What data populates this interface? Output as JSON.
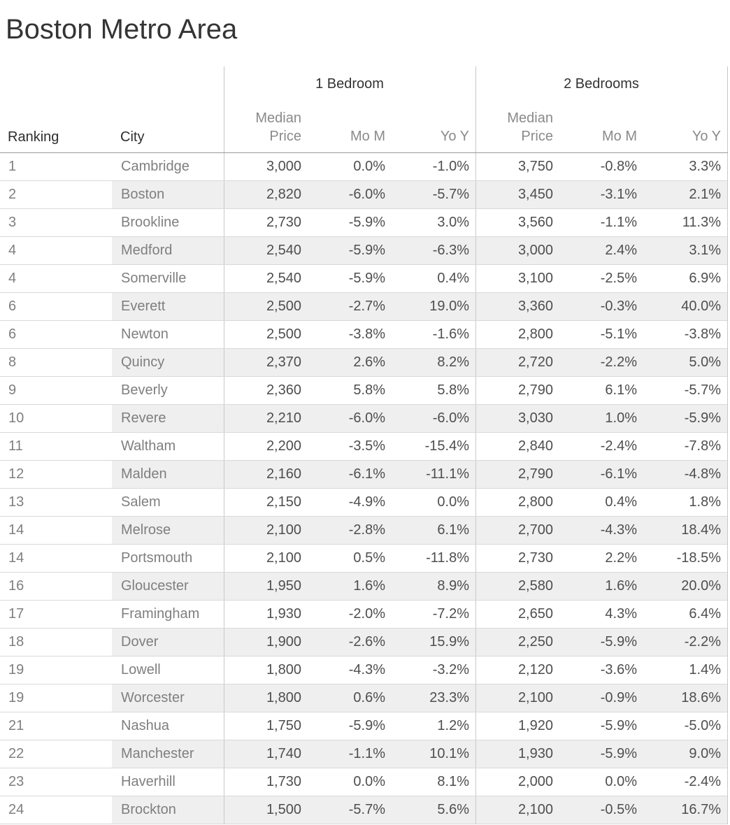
{
  "title": "Boston Metro Area",
  "header": {
    "ranking": "Ranking",
    "city": "City",
    "group_1br": "1 Bedroom",
    "group_2br": "2 Bedrooms",
    "median_price": "Median\nPrice",
    "mom": "Mo M",
    "yoy": "Yo Y"
  },
  "colors": {
    "title_text": "#343434",
    "header_text": "#2e2e2e",
    "subheader_text": "#8a8a8a",
    "dimension_text": "#7f7f7f",
    "value_text": "#4e4e4e",
    "row_stripe": "#efefef",
    "row_line": "#d9d9d9",
    "header_line": "#999999",
    "pane_line": "#c9c9c9",
    "background": "#ffffff"
  },
  "chart_data": {
    "type": "table",
    "title": "Boston Metro Area",
    "column_groups": [
      "",
      "",
      "1 Bedroom",
      "1 Bedroom",
      "1 Bedroom",
      "2 Bedrooms",
      "2 Bedrooms",
      "2 Bedrooms"
    ],
    "columns": [
      "Ranking",
      "City",
      "Median Price",
      "Mo M",
      "Yo Y",
      "Median Price",
      "Mo M",
      "Yo Y"
    ],
    "rows": [
      [
        "1",
        "Cambridge",
        "3,000",
        "0.0%",
        "-1.0%",
        "3,750",
        "-0.8%",
        "3.3%"
      ],
      [
        "2",
        "Boston",
        "2,820",
        "-6.0%",
        "-5.7%",
        "3,450",
        "-3.1%",
        "2.1%"
      ],
      [
        "3",
        "Brookline",
        "2,730",
        "-5.9%",
        "3.0%",
        "3,560",
        "-1.1%",
        "11.3%"
      ],
      [
        "4",
        "Medford",
        "2,540",
        "-5.9%",
        "-6.3%",
        "3,000",
        "2.4%",
        "3.1%"
      ],
      [
        "4",
        "Somerville",
        "2,540",
        "-5.9%",
        "0.4%",
        "3,100",
        "-2.5%",
        "6.9%"
      ],
      [
        "6",
        "Everett",
        "2,500",
        "-2.7%",
        "19.0%",
        "3,360",
        "-0.3%",
        "40.0%"
      ],
      [
        "6",
        "Newton",
        "2,500",
        "-3.8%",
        "-1.6%",
        "2,800",
        "-5.1%",
        "-3.8%"
      ],
      [
        "8",
        "Quincy",
        "2,370",
        "2.6%",
        "8.2%",
        "2,720",
        "-2.2%",
        "5.0%"
      ],
      [
        "9",
        "Beverly",
        "2,360",
        "5.8%",
        "5.8%",
        "2,790",
        "6.1%",
        "-5.7%"
      ],
      [
        "10",
        "Revere",
        "2,210",
        "-6.0%",
        "-6.0%",
        "3,030",
        "1.0%",
        "-5.9%"
      ],
      [
        "11",
        "Waltham",
        "2,200",
        "-3.5%",
        "-15.4%",
        "2,840",
        "-2.4%",
        "-7.8%"
      ],
      [
        "12",
        "Malden",
        "2,160",
        "-6.1%",
        "-11.1%",
        "2,790",
        "-6.1%",
        "-4.8%"
      ],
      [
        "13",
        "Salem",
        "2,150",
        "-4.9%",
        "0.0%",
        "2,800",
        "0.4%",
        "1.8%"
      ],
      [
        "14",
        "Melrose",
        "2,100",
        "-2.8%",
        "6.1%",
        "2,700",
        "-4.3%",
        "18.4%"
      ],
      [
        "14",
        "Portsmouth",
        "2,100",
        "0.5%",
        "-11.8%",
        "2,730",
        "2.2%",
        "-18.5%"
      ],
      [
        "16",
        "Gloucester",
        "1,950",
        "1.6%",
        "8.9%",
        "2,580",
        "1.6%",
        "20.0%"
      ],
      [
        "17",
        "Framingham",
        "1,930",
        "-2.0%",
        "-7.2%",
        "2,650",
        "4.3%",
        "6.4%"
      ],
      [
        "18",
        "Dover",
        "1,900",
        "-2.6%",
        "15.9%",
        "2,250",
        "-5.9%",
        "-2.2%"
      ],
      [
        "19",
        "Lowell",
        "1,800",
        "-4.3%",
        "-3.2%",
        "2,120",
        "-3.6%",
        "1.4%"
      ],
      [
        "19",
        "Worcester",
        "1,800",
        "0.6%",
        "23.3%",
        "2,100",
        "-0.9%",
        "18.6%"
      ],
      [
        "21",
        "Nashua",
        "1,750",
        "-5.9%",
        "1.2%",
        "1,920",
        "-5.9%",
        "-5.0%"
      ],
      [
        "22",
        "Manchester",
        "1,740",
        "-1.1%",
        "10.1%",
        "1,930",
        "-5.9%",
        "9.0%"
      ],
      [
        "23",
        "Haverhill",
        "1,730",
        "0.0%",
        "8.1%",
        "2,000",
        "0.0%",
        "-2.4%"
      ],
      [
        "24",
        "Brockton",
        "1,500",
        "-5.7%",
        "5.6%",
        "2,100",
        "-0.5%",
        "16.7%"
      ]
    ]
  }
}
